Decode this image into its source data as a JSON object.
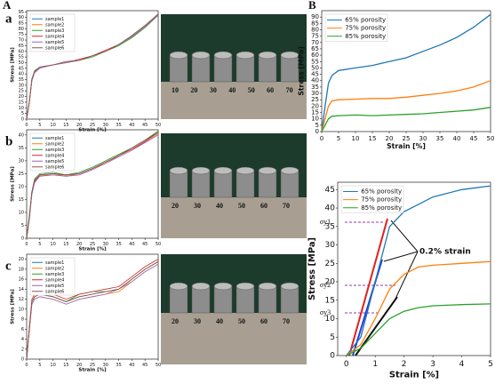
{
  "figure_labels": [
    "A",
    "B"
  ],
  "photos": [
    {
      "ruler": [
        "10",
        "20",
        "30",
        "40",
        "50",
        "60",
        "70"
      ]
    },
    {
      "ruler": [
        "20",
        "30",
        "40",
        "50",
        "60",
        "70"
      ]
    },
    {
      "ruler": [
        "20",
        "30",
        "40",
        "50",
        "60",
        "70"
      ]
    }
  ],
  "chart_data": [
    {
      "type": "line",
      "panel_label": "a",
      "xlabel": "Strain [%]",
      "ylabel": "Stress [MPa]",
      "x": [
        0,
        1,
        2,
        3,
        5,
        10,
        15,
        20,
        25,
        30,
        35,
        40,
        45,
        50
      ],
      "xlim": [
        0,
        50
      ],
      "xticks": [
        0,
        5,
        10,
        15,
        20,
        25,
        30,
        35,
        40,
        45,
        50
      ],
      "ylim": [
        0,
        96
      ],
      "yticks": [
        0,
        5,
        10,
        15,
        20,
        25,
        30,
        35,
        40,
        45,
        50,
        55,
        60,
        65,
        70,
        75,
        80,
        85,
        90,
        95
      ],
      "legend": "upper left",
      "series": [
        {
          "name": "sample1",
          "color": "#1f77b4",
          "values": [
            0,
            15,
            35,
            42,
            46,
            48,
            50,
            52,
            56,
            60,
            66,
            73,
            82,
            93
          ]
        },
        {
          "name": "sample2",
          "color": "#ff7f0e",
          "values": [
            0,
            14,
            34,
            42,
            46,
            48,
            50,
            52,
            56,
            60,
            66,
            73,
            82,
            92
          ]
        },
        {
          "name": "sample3",
          "color": "#2ca02c",
          "values": [
            0,
            15,
            35,
            43,
            46,
            48,
            50,
            52,
            55,
            60,
            65,
            72,
            81,
            92
          ]
        },
        {
          "name": "sample4",
          "color": "#d62728",
          "values": [
            0,
            16,
            36,
            42,
            46,
            48,
            50,
            53,
            56,
            61,
            66,
            73,
            82,
            93
          ]
        },
        {
          "name": "sample5",
          "color": "#9467bd",
          "values": [
            0,
            15,
            34,
            41,
            45,
            48,
            50,
            52,
            56,
            60,
            66,
            73,
            82,
            92
          ]
        },
        {
          "name": "sample6",
          "color": "#8c564b",
          "values": [
            0,
            15,
            35,
            42,
            46,
            48,
            51,
            52,
            56,
            60,
            66,
            74,
            83,
            93
          ]
        }
      ]
    },
    {
      "type": "line",
      "panel_label": "b",
      "xlabel": "Strain [%]",
      "ylabel": "Stress [MPa]",
      "x": [
        0,
        1,
        2,
        3,
        5,
        10,
        15,
        20,
        25,
        30,
        35,
        40,
        45,
        50
      ],
      "xlim": [
        0,
        50
      ],
      "xticks": [
        0,
        5,
        10,
        15,
        20,
        25,
        30,
        35,
        40,
        45,
        50
      ],
      "ylim": [
        0,
        42
      ],
      "yticks": [
        0,
        5,
        10,
        15,
        20,
        25,
        30,
        35,
        40
      ],
      "legend": "upper left",
      "series": [
        {
          "name": "sample1",
          "color": "#1f77b4",
          "values": [
            0,
            8,
            18,
            22,
            24.5,
            25,
            24.5,
            25,
            27,
            29.5,
            32,
            34.5,
            37.5,
            41
          ]
        },
        {
          "name": "sample2",
          "color": "#ff7f0e",
          "values": [
            0,
            8,
            17,
            22,
            24,
            25,
            24,
            25,
            27,
            29,
            32,
            34.5,
            37,
            40.5
          ]
        },
        {
          "name": "sample3",
          "color": "#2ca02c",
          "values": [
            0,
            9,
            18,
            23,
            25,
            25.5,
            24.5,
            25.5,
            27.5,
            30,
            32.5,
            35,
            38,
            41.5
          ]
        },
        {
          "name": "sample4",
          "color": "#d62728",
          "values": [
            0,
            8,
            18,
            22,
            24.5,
            25,
            24.5,
            25,
            27,
            29.5,
            32,
            34.5,
            37.5,
            41
          ]
        },
        {
          "name": "sample5",
          "color": "#9467bd",
          "values": [
            0,
            7,
            17,
            21.5,
            24,
            24.5,
            24,
            24.5,
            26.5,
            29,
            31.5,
            34,
            37,
            40
          ]
        },
        {
          "name": "sample6",
          "color": "#8c564b",
          "values": [
            0,
            8,
            18,
            22.5,
            24.5,
            25,
            24.5,
            25,
            27,
            29.5,
            32,
            35,
            38,
            41
          ]
        }
      ]
    },
    {
      "type": "line",
      "panel_label": "c",
      "xlabel": "Strain [%]",
      "ylabel": "Stress [MPa]",
      "x": [
        0,
        1,
        2,
        3,
        5,
        10,
        15,
        20,
        25,
        30,
        35,
        40,
        45,
        50
      ],
      "xlim": [
        0,
        50
      ],
      "xticks": [
        0,
        5,
        10,
        15,
        20,
        25,
        30,
        35,
        40,
        45,
        50
      ],
      "ylim": [
        0,
        21
      ],
      "yticks": [
        0,
        2,
        4,
        6,
        8,
        10,
        12,
        14,
        16,
        18,
        20
      ],
      "legend": "upper left",
      "series": [
        {
          "name": "sample1",
          "color": "#1f77b4",
          "values": [
            0,
            6,
            11.5,
            12.5,
            13,
            12.5,
            11.5,
            12.5,
            13,
            13.5,
            14,
            16,
            18,
            19.5
          ]
        },
        {
          "name": "sample2",
          "color": "#ff7f0e",
          "values": [
            0,
            5.5,
            11,
            12,
            12.5,
            12,
            11,
            12,
            12.5,
            13,
            13.5,
            15.5,
            17.5,
            19
          ]
        },
        {
          "name": "sample3",
          "color": "#2ca02c",
          "values": [
            0,
            6,
            11.5,
            12.5,
            13,
            12.5,
            11.5,
            13,
            13.5,
            13.5,
            14,
            16,
            18,
            19.5
          ]
        },
        {
          "name": "sample4",
          "color": "#d62728",
          "values": [
            0,
            6.5,
            12,
            13,
            13.5,
            13,
            12,
            13,
            13.5,
            14,
            14.5,
            16.5,
            18.5,
            20
          ]
        },
        {
          "name": "sample5",
          "color": "#9467bd",
          "values": [
            0,
            6,
            11,
            12,
            12.5,
            12,
            11,
            12,
            12.5,
            13,
            14,
            15.5,
            17.5,
            19
          ]
        },
        {
          "name": "sample6",
          "color": "#8c564b",
          "values": [
            0,
            6,
            11.5,
            12.5,
            13,
            12.5,
            11.5,
            12.5,
            13,
            13.5,
            14,
            16,
            18,
            19.5
          ]
        }
      ]
    },
    {
      "type": "line",
      "xlabel": "Strain [%]",
      "ylabel": "Stress [MPa]",
      "x": [
        0,
        1,
        2,
        3,
        5,
        10,
        15,
        20,
        25,
        30,
        35,
        40,
        45,
        50
      ],
      "xlim": [
        0,
        50
      ],
      "xticks": [
        0,
        5,
        10,
        15,
        20,
        25,
        30,
        35,
        40,
        45,
        50
      ],
      "ylim": [
        0,
        95
      ],
      "yticks": [
        0,
        5,
        10,
        15,
        20,
        25,
        30,
        35,
        40,
        45,
        50,
        55,
        60,
        65,
        70,
        75,
        80,
        85,
        90
      ],
      "legend": "upper left",
      "series": [
        {
          "name": "65% porosity",
          "color": "#1f77b4",
          "values": [
            0,
            20,
            38,
            44,
            48,
            50,
            52,
            55,
            58,
            63,
            68,
            74,
            82,
            92
          ]
        },
        {
          "name": "75% porosity",
          "color": "#ff7f0e",
          "values": [
            0,
            10,
            20,
            24,
            25,
            25.5,
            26,
            26,
            27,
            28.5,
            30,
            32,
            35,
            40
          ]
        },
        {
          "name": "85% porosity",
          "color": "#2ca02c",
          "values": [
            0,
            5,
            10,
            12,
            12.5,
            13,
            12.5,
            13,
            13.5,
            14,
            15,
            16,
            17,
            19
          ]
        }
      ]
    },
    {
      "type": "line",
      "xlabel": "Strain [%]",
      "ylabel": "Stress [MPa]",
      "x": [
        0,
        0.5,
        1,
        1.5,
        2,
        2.5,
        3,
        4,
        5
      ],
      "xlim": [
        -0.3,
        5
      ],
      "xticks": [
        0,
        1,
        2,
        3,
        4,
        5
      ],
      "ylim": [
        0,
        47
      ],
      "yticks": [
        0,
        5,
        10,
        15,
        20,
        25,
        30,
        35,
        40,
        45
      ],
      "legend": "upper left",
      "annotations": [
        "0.2% strain",
        "σy1",
        "σy2",
        "σy3"
      ],
      "series": [
        {
          "name": "65% porosity",
          "color": "#1f77b4",
          "values": [
            0,
            5,
            20,
            35,
            39,
            41,
            43,
            45,
            46
          ]
        },
        {
          "name": "75% porosity",
          "color": "#ff7f0e",
          "values": [
            0,
            3,
            10,
            18,
            22,
            24,
            24.5,
            25,
            25.5
          ]
        },
        {
          "name": "85% porosity",
          "color": "#2ca02c",
          "values": [
            0,
            2,
            6,
            10,
            12,
            13,
            13.5,
            13.8,
            14
          ]
        }
      ]
    }
  ]
}
